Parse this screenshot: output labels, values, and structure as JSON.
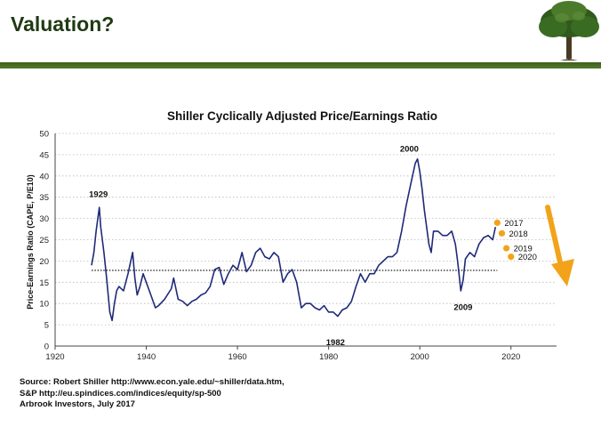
{
  "slide": {
    "title": "Valuation?"
  },
  "footer": {
    "lines": [
      "Source: Robert Shiller http://www.econ.yale.edu/~shiller/data.htm,",
      "S&P http://eu.spindices.com/indices/equity/sp-500",
      "Arbrook Investors, July 2017"
    ]
  },
  "chart_data": {
    "type": "line",
    "title": "Shiller Cyclically Adjusted Price/Earnings Ratio",
    "xlabel": "",
    "ylabel": "Price-Earnings Ratio (CAPE, P/E10)",
    "xlim": [
      1920,
      2030
    ],
    "ylim": [
      0,
      50
    ],
    "x_ticks": [
      1920,
      1940,
      1960,
      1980,
      2000,
      2020
    ],
    "y_ticks": [
      0,
      5,
      10,
      15,
      20,
      25,
      30,
      35,
      40,
      45,
      50
    ],
    "grid": "horizontal dotted",
    "colors": {
      "line": "#1f2a78",
      "projection": "#f2a31a",
      "mean": "#000000"
    },
    "series": [
      {
        "values_x": [
          1928,
          1928.5,
          1929,
          1929.7,
          1930,
          1930.7,
          1931.3,
          1932,
          1932.5,
          1933,
          1933.5,
          1934,
          1935,
          1936,
          1936.6,
          1937,
          1937.5,
          1938,
          1938.6,
          1939.3,
          1940,
          1941,
          1942,
          1942.7,
          1944,
          1945.5,
          1946,
          1947,
          1948,
          1949,
          1950,
          1951,
          1952,
          1953,
          1954,
          1955,
          1956,
          1957,
          1958,
          1959,
          1960,
          1961,
          1962,
          1963,
          1964,
          1965,
          1966,
          1967,
          1968,
          1969,
          1970,
          1971,
          1972,
          1973,
          1974,
          1975,
          1976,
          1977,
          1978,
          1979,
          1980,
          1981,
          1982,
          1983,
          1984,
          1985,
          1986,
          1987,
          1988,
          1989,
          1990,
          1991,
          1992,
          1993,
          1994,
          1995,
          1996,
          1997,
          1998,
          1999,
          1999.5,
          2000,
          2000.5,
          2001,
          2002,
          2002.5,
          2003,
          2004,
          2005,
          2006,
          2007,
          2007.8,
          2008.3,
          2008.7,
          2009,
          2009.5,
          2010,
          2011,
          2012,
          2013,
          2014,
          2015,
          2016,
          2016.6
        ],
        "values_y": [
          19,
          22,
          27,
          32.6,
          28,
          22,
          16,
          8,
          6,
          10,
          13,
          14,
          13,
          17,
          20,
          22,
          16,
          12,
          14,
          17,
          15,
          12,
          9,
          9.5,
          11,
          13.5,
          16,
          11,
          10.5,
          9.5,
          10.5,
          11,
          12,
          12.5,
          14,
          18,
          18.5,
          14.5,
          17,
          19,
          18,
          22,
          17.5,
          19,
          22,
          23,
          21,
          20.5,
          22,
          21,
          15,
          17,
          18,
          15,
          9,
          10,
          10,
          9,
          8.5,
          9.5,
          8,
          8,
          7,
          8.5,
          9,
          10.5,
          14,
          17,
          15,
          17,
          17,
          19,
          20,
          21,
          21,
          22,
          27,
          33,
          38,
          43,
          44,
          41,
          37,
          32,
          24,
          22,
          27,
          27,
          26,
          26,
          27,
          24,
          20,
          16,
          13,
          15.5,
          20.5,
          22,
          21,
          24,
          25.5,
          26,
          25,
          28
        ]
      }
    ],
    "mean_line": {
      "y": 17.8,
      "x_range": [
        1928,
        2017
      ]
    },
    "projection_points": [
      {
        "x": 2017,
        "y": 29,
        "label": "2017"
      },
      {
        "x": 2018,
        "y": 26.5,
        "label": "2018"
      },
      {
        "x": 2019,
        "y": 23,
        "label": "2019"
      },
      {
        "x": 2020,
        "y": 21,
        "label": "2020"
      }
    ],
    "annotations": [
      {
        "text": "1929",
        "x": 1929.5,
        "y": 35
      },
      {
        "text": "2000",
        "x": 1997.7,
        "y": 45.7
      },
      {
        "text": "1982",
        "x": 1981.5,
        "y": 0.2
      },
      {
        "text": "2009",
        "x": 2009.5,
        "y": 8.5
      }
    ]
  }
}
